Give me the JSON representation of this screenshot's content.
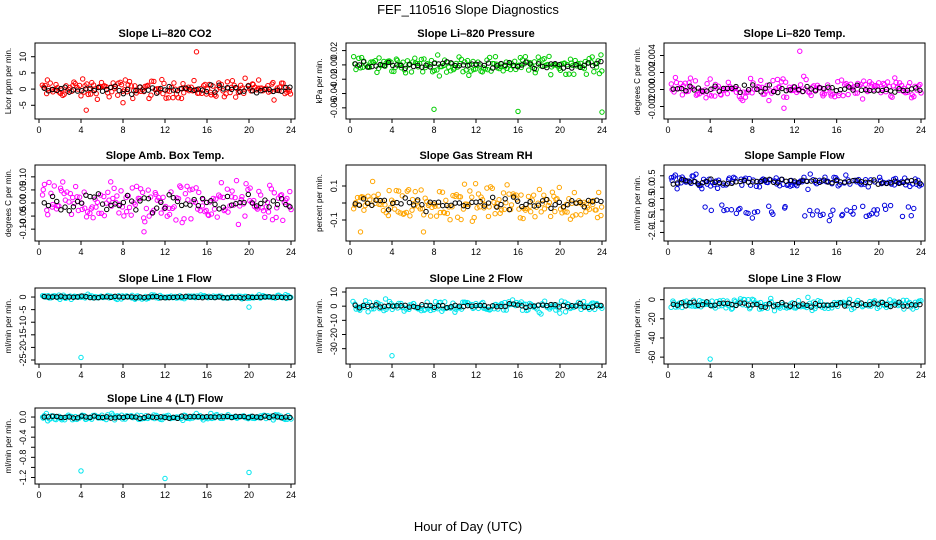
{
  "figure": {
    "title": "FEF_110516  Slope Diagnostics",
    "xlabel": "Hour of Day (UTC)"
  },
  "chart_data": [
    {
      "type": "scatter",
      "title": "Slope Li–820 CO2",
      "ylabel": "Licor ppm per min.",
      "color": "#ff0000",
      "xlim": [
        0,
        24
      ],
      "ylim": [
        -8,
        13
      ],
      "xticks": [
        0,
        4,
        8,
        12,
        16,
        20,
        24
      ],
      "yticks": [
        -5,
        0,
        5,
        10
      ],
      "ytick_labels": [
        "-5",
        "0",
        "5",
        "10"
      ],
      "center": 0,
      "spread": 1.4,
      "outliers": [
        {
          "x": 15,
          "y": 11.5
        },
        {
          "x": 8,
          "y": -4.2
        },
        {
          "x": 4.5,
          "y": -6.5
        }
      ]
    },
    {
      "type": "scatter",
      "title": "Slope Li–820 Pressure",
      "ylabel": "kPa per min.",
      "color": "#00cc00",
      "xlim": [
        0,
        24
      ],
      "ylim": [
        -0.07,
        0.025
      ],
      "xticks": [
        0,
        4,
        8,
        12,
        16,
        20,
        24
      ],
      "yticks": [
        -0.06,
        -0.04,
        -0.02,
        0.0,
        0.02
      ],
      "ytick_labels": [
        "-0.06",
        "-0.04",
        "-0.02",
        "0.00",
        "0.02"
      ],
      "center": 0.0,
      "spread": 0.006,
      "outliers": [
        {
          "x": 8,
          "y": -0.062
        },
        {
          "x": 16,
          "y": -0.065
        },
        {
          "x": 24,
          "y": -0.066
        }
      ]
    },
    {
      "type": "scatter",
      "title": "Slope Li–820 Temp.",
      "ylabel": "degrees C per min.",
      "color": "#ff00ff",
      "xlim": [
        0,
        24
      ],
      "ylim": [
        -0.003,
        0.005
      ],
      "xticks": [
        0,
        4,
        8,
        12,
        16,
        20,
        24
      ],
      "yticks": [
        -0.002,
        0.0,
        0.002,
        0.004
      ],
      "ytick_labels": [
        "-0.002",
        "0.000",
        "0.002",
        "0.004"
      ],
      "center": 0,
      "spread": 0.0006,
      "outliers": [
        {
          "x": 12.5,
          "y": 0.0045
        },
        {
          "x": 11,
          "y": -0.0022
        }
      ]
    },
    {
      "type": "scatter",
      "title": "Slope Amb. Box Temp.",
      "ylabel": "degrees C per min.",
      "color": "#ff00ff",
      "xlim": [
        0,
        24
      ],
      "ylim": [
        -0.13,
        0.13
      ],
      "xticks": [
        0,
        4,
        8,
        12,
        16,
        20,
        24
      ],
      "yticks": [
        -0.1,
        -0.05,
        0.0,
        0.05,
        0.1
      ],
      "ytick_labels": [
        "-0.10",
        "-0.05",
        "0.00",
        "0.05",
        "0.10"
      ],
      "center": 0,
      "spread": 0.04,
      "outliers": [
        {
          "x": 10,
          "y": -0.11
        }
      ]
    },
    {
      "type": "scatter",
      "title": "Slope Gas Stream RH",
      "ylabel": "percent per min.",
      "color": "#ffa500",
      "xlim": [
        0,
        24
      ],
      "ylim": [
        -0.2,
        0.2
      ],
      "xticks": [
        0,
        4,
        8,
        12,
        16,
        20,
        24
      ],
      "yticks": [
        -0.1,
        0.0,
        0.1
      ],
      "ytick_labels": [
        "-0.1",
        "",
        "0.1"
      ],
      "center": 0,
      "spread": 0.05,
      "outliers": [
        {
          "x": 1,
          "y": -0.17
        },
        {
          "x": 7,
          "y": -0.17
        }
      ]
    },
    {
      "type": "scatter",
      "title": "Slope Sample Flow",
      "ylabel": "ml/min per min.",
      "color": "#0000dd",
      "xlim": [
        0,
        24
      ],
      "ylim": [
        -2.2,
        0.8
      ],
      "xticks": [
        0,
        4,
        8,
        12,
        16,
        20,
        24
      ],
      "yticks": [
        -2.0,
        -1.5,
        -1.0,
        -0.5,
        0.0,
        0.5
      ],
      "ytick_labels": [
        "-2.0",
        "-1.5",
        "-1.0",
        "-0.5",
        "0.0",
        "0.5"
      ],
      "center": 0.25,
      "spread": 0.15,
      "outliers": [],
      "band2_center": -1.1
    },
    {
      "type": "scatter",
      "title": "Slope Line 1 Flow",
      "ylabel": "ml/min per min.",
      "color": "#00e5ee",
      "xlim": [
        0,
        24
      ],
      "ylim": [
        -25,
        2
      ],
      "xticks": [
        0,
        4,
        8,
        12,
        16,
        20,
        24
      ],
      "yticks": [
        -25,
        -20,
        -15,
        -10,
        -5,
        0
      ],
      "ytick_labels": [
        "-25",
        "-20",
        "-15",
        "-10",
        "-5",
        "0"
      ],
      "center": 0,
      "spread": 0.4,
      "outliers": [
        {
          "x": 4,
          "y": -24
        },
        {
          "x": 20,
          "y": -4
        }
      ]
    },
    {
      "type": "scatter",
      "title": "Slope Line 2 Flow",
      "ylabel": "ml/min per min.",
      "color": "#00e5ee",
      "xlim": [
        0,
        24
      ],
      "ylim": [
        -38,
        10
      ],
      "xticks": [
        0,
        4,
        8,
        12,
        16,
        20,
        24
      ],
      "yticks": [
        -30,
        -20,
        -10,
        0,
        10
      ],
      "ytick_labels": [
        "-30",
        "-20",
        "-10",
        "0",
        "10"
      ],
      "center": 0,
      "spread": 2,
      "outliers": [
        {
          "x": 4,
          "y": -35
        }
      ]
    },
    {
      "type": "scatter",
      "title": "Slope Line 3 Flow",
      "ylabel": "ml/min per min.",
      "color": "#00e5ee",
      "xlim": [
        0,
        24
      ],
      "ylim": [
        -63,
        8
      ],
      "xticks": [
        0,
        4,
        8,
        12,
        16,
        20,
        24
      ],
      "yticks": [
        -60,
        -40,
        -20,
        0
      ],
      "ytick_labels": [
        "-60",
        "-40",
        "-20",
        "0"
      ],
      "center": -5,
      "spread": 3,
      "outliers": [
        {
          "x": 4,
          "y": -62
        }
      ]
    },
    {
      "type": "scatter",
      "title": "Slope Line 4 (LT) Flow",
      "ylabel": "ml/min per min.",
      "color": "#00e5ee",
      "xlim": [
        0,
        24
      ],
      "ylim": [
        -1.25,
        0.1
      ],
      "xticks": [
        0,
        4,
        8,
        12,
        16,
        20,
        24
      ],
      "yticks": [
        -1.2,
        -1.0,
        -0.8,
        -0.6,
        -0.4,
        -0.2,
        0.0
      ],
      "ytick_labels": [
        "-1.2",
        "",
        "-0.8",
        "",
        "-0.4",
        "",
        "0.0"
      ],
      "center": 0,
      "spread": 0.03,
      "outliers": [
        {
          "x": 4,
          "y": -1.07
        },
        {
          "x": 20,
          "y": -1.1
        },
        {
          "x": 12,
          "y": -1.22
        }
      ]
    }
  ]
}
